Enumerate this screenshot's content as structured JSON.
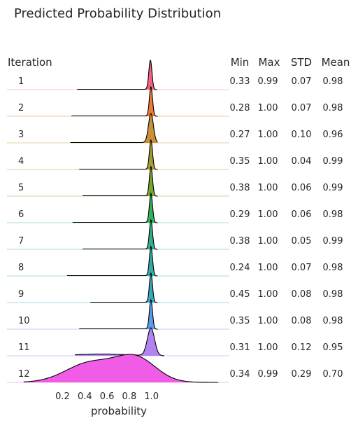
{
  "chart_data": {
    "type": "ridgeline",
    "title": "Predicted Probability Distribution",
    "xlabel": "probability",
    "x_ticks": [
      "0.2",
      "0.4",
      "0.6",
      "0.8",
      "1.0"
    ],
    "xlim": [
      -0.3,
      1.7
    ],
    "headers": {
      "iteration": "Iteration",
      "min": "Min",
      "max": "Max",
      "std": "STD",
      "mean": "Mean"
    },
    "rows": [
      {
        "label": "1",
        "min": "0.33",
        "max": "0.99",
        "std": "0.07",
        "mean": "0.98",
        "color": "#f2637e",
        "base": "#ffd6df"
      },
      {
        "label": "2",
        "min": "0.28",
        "max": "1.00",
        "std": "0.07",
        "mean": "0.98",
        "color": "#ef7a3a",
        "base": "#f6dcc7"
      },
      {
        "label": "3",
        "min": "0.27",
        "max": "1.00",
        "std": "0.10",
        "mean": "0.96",
        "color": "#c89138",
        "base": "#eedfbf"
      },
      {
        "label": "4",
        "min": "0.35",
        "max": "1.00",
        "std": "0.04",
        "mean": "0.99",
        "color": "#a69a33",
        "base": "#e4e2bf"
      },
      {
        "label": "5",
        "min": "0.38",
        "max": "1.00",
        "std": "0.06",
        "mean": "0.99",
        "color": "#79a531",
        "base": "#d9e6c3"
      },
      {
        "label": "6",
        "min": "0.29",
        "max": "1.00",
        "std": "0.06",
        "mean": "0.98",
        "color": "#33b15b",
        "base": "#c7ead2"
      },
      {
        "label": "7",
        "min": "0.38",
        "max": "1.00",
        "std": "0.05",
        "mean": "0.99",
        "color": "#35ad8b",
        "base": "#c5e9df"
      },
      {
        "label": "8",
        "min": "0.24",
        "max": "1.00",
        "std": "0.07",
        "mean": "0.98",
        "color": "#36aaa6",
        "base": "#c5e7e7"
      },
      {
        "label": "9",
        "min": "0.45",
        "max": "1.00",
        "std": "0.08",
        "mean": "0.98",
        "color": "#38a7c0",
        "base": "#c7e4ee"
      },
      {
        "label": "10",
        "min": "0.35",
        "max": "1.00",
        "std": "0.08",
        "mean": "0.98",
        "color": "#5a9ce8",
        "base": "#d2def5"
      },
      {
        "label": "11",
        "min": "0.31",
        "max": "1.00",
        "std": "0.12",
        "mean": "0.95",
        "color": "#b083f0",
        "base": "#e6dcf8"
      },
      {
        "label": "12",
        "min": "0.34",
        "max": "0.99",
        "std": "0.29",
        "mean": "0.70",
        "color": "#f05ce6",
        "base": "#f8d2f3"
      }
    ]
  }
}
